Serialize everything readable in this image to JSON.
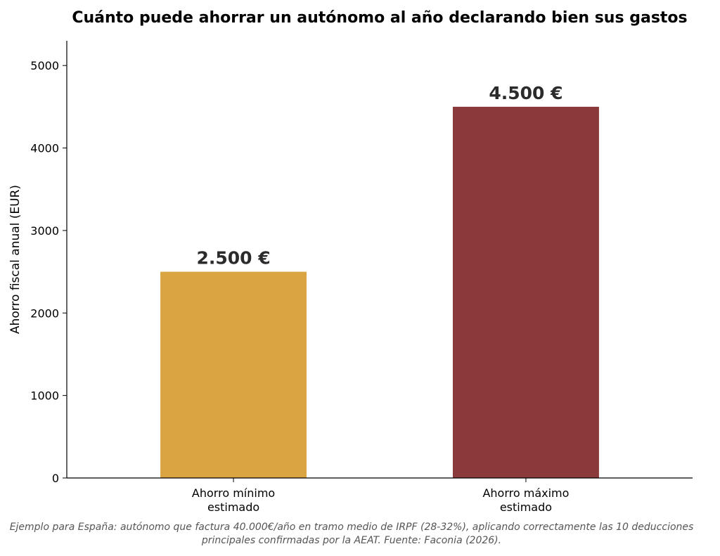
{
  "chart_data": {
    "type": "bar",
    "title": "Cuánto puede ahorrar un autónomo al año declarando bien sus gastos",
    "xlabel": "",
    "ylabel": "Ahorro fiscal anual (EUR)",
    "categories": [
      [
        "Ahorro mínimo",
        "estimado"
      ],
      [
        "Ahorro máximo",
        "estimado"
      ]
    ],
    "values": [
      2500,
      4500
    ],
    "value_labels": [
      "2.500 €",
      "4.500 €"
    ],
    "colors": [
      "#D9A441",
      "#8B3A3C"
    ],
    "ylim": [
      0,
      5300
    ],
    "yticks": [
      0,
      1000,
      2000,
      3000,
      4000,
      5000
    ],
    "ytick_labels": [
      "0",
      "1000",
      "2000",
      "3000",
      "4000",
      "5000"
    ],
    "grid": false,
    "legend": "none",
    "footnote": "Ejemplo para España: autónomo que factura 40.000€/año en tramo medio de IRPF (28-32%), aplicando correctamente las 10 deducciones principales confirmadas por la AEAT. Fuente: Faconia (2026)."
  }
}
